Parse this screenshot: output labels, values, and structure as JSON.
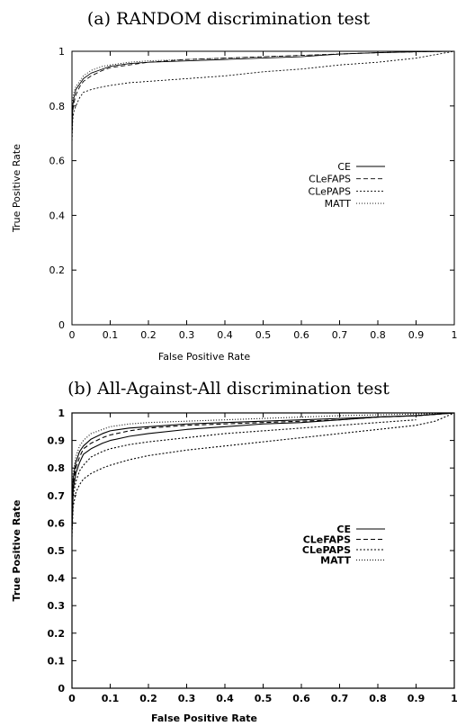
{
  "chart_data": [
    {
      "type": "line",
      "title": "(a) RANDOM discrimination test",
      "xlabel": "False Positive Rate",
      "ylabel": "True Positive Rate",
      "xlim": [
        0,
        1
      ],
      "ylim": [
        0,
        1
      ],
      "xticks": [
        "0",
        "0.1",
        "0.2",
        "0.3",
        "0.4",
        "0.5",
        "0.6",
        "0.7",
        "0.8",
        "0.9",
        "1"
      ],
      "yticks": [
        "0",
        "0.2",
        "0.4",
        "0.6",
        "0.8",
        "1"
      ],
      "grid": false,
      "legend_position": "center-right",
      "series": [
        {
          "name": "CE",
          "dash": "",
          "x": [
            0,
            0.002,
            0.005,
            0.01,
            0.02,
            0.03,
            0.05,
            0.08,
            0.1,
            0.15,
            0.2,
            0.3,
            0.4,
            0.5,
            0.6,
            0.7,
            0.8,
            0.9,
            1.0
          ],
          "y": [
            0.7,
            0.8,
            0.83,
            0.86,
            0.88,
            0.9,
            0.92,
            0.935,
            0.945,
            0.955,
            0.96,
            0.965,
            0.97,
            0.975,
            0.98,
            0.99,
            0.995,
            0.998,
            1.0
          ]
        },
        {
          "name": "CLeFAPS",
          "dash": "5,3",
          "x": [
            0,
            0.002,
            0.005,
            0.01,
            0.02,
            0.03,
            0.05,
            0.08,
            0.1,
            0.15,
            0.2,
            0.3,
            0.4,
            0.5,
            0.6,
            0.7,
            0.8,
            0.9,
            1.0
          ],
          "y": [
            0.68,
            0.78,
            0.81,
            0.84,
            0.87,
            0.89,
            0.91,
            0.93,
            0.94,
            0.95,
            0.96,
            0.97,
            0.975,
            0.98,
            0.985,
            0.99,
            0.995,
            0.998,
            1.0
          ]
        },
        {
          "name": "CLePAPS",
          "dash": "2,2",
          "x": [
            0,
            0.002,
            0.005,
            0.01,
            0.02,
            0.03,
            0.05,
            0.08,
            0.1,
            0.15,
            0.2,
            0.3,
            0.4,
            0.5,
            0.6,
            0.7,
            0.8,
            0.9,
            1.0
          ],
          "y": [
            0.66,
            0.75,
            0.78,
            0.8,
            0.83,
            0.85,
            0.86,
            0.87,
            0.875,
            0.885,
            0.89,
            0.9,
            0.91,
            0.925,
            0.935,
            0.95,
            0.96,
            0.975,
            1.0
          ]
        },
        {
          "name": "MATT",
          "dash": "1,2",
          "x": [
            0,
            0.002,
            0.005,
            0.01,
            0.02,
            0.03,
            0.05,
            0.08,
            0.1,
            0.15,
            0.2,
            0.3,
            0.4,
            0.5,
            0.6,
            0.7,
            0.8,
            0.9,
            1.0
          ],
          "y": [
            0.72,
            0.82,
            0.85,
            0.87,
            0.89,
            0.91,
            0.93,
            0.945,
            0.95,
            0.96,
            0.965,
            0.97,
            0.975,
            0.98,
            0.985,
            0.99,
            0.995,
            0.998,
            1.0
          ]
        }
      ]
    },
    {
      "type": "line",
      "title": "(b) All-Against-All discrimination test",
      "xlabel": "False Positive Rate",
      "ylabel": "True Positive Rate",
      "xlim": [
        0,
        1
      ],
      "ylim": [
        0,
        1
      ],
      "xticks": [
        "0",
        "0.1",
        "0.2",
        "0.3",
        "0.4",
        "0.5",
        "0.6",
        "0.7",
        "0.8",
        "0.9",
        "1"
      ],
      "yticks": [
        "0",
        "0.1",
        "0.2",
        "0.3",
        "0.4",
        "0.5",
        "0.6",
        "0.7",
        "0.8",
        "0.9",
        "1"
      ],
      "grid": false,
      "legend_position": "center-right",
      "series": [
        {
          "name": "CE",
          "dash": "",
          "x": [
            0,
            0.003,
            0.01,
            0.02,
            0.03,
            0.05,
            0.08,
            0.1,
            0.15,
            0.2,
            0.3,
            0.4,
            0.5,
            0.6,
            0.7,
            0.8,
            0.9,
            0.95,
            1.0
          ],
          "y": [
            0.6,
            0.76,
            0.82,
            0.86,
            0.88,
            0.905,
            0.925,
            0.935,
            0.945,
            0.95,
            0.96,
            0.965,
            0.97,
            0.975,
            0.98,
            0.985,
            0.99,
            0.995,
            1.0
          ]
        },
        {
          "name": "CE",
          "dash": "",
          "x": [
            0,
            0.003,
            0.01,
            0.02,
            0.03,
            0.05,
            0.08,
            0.1,
            0.15,
            0.2,
            0.3,
            0.4,
            0.5,
            0.6,
            0.7,
            0.8,
            0.9,
            0.95,
            1.0
          ],
          "y": [
            0.58,
            0.72,
            0.78,
            0.82,
            0.85,
            0.87,
            0.89,
            0.9,
            0.915,
            0.925,
            0.94,
            0.95,
            0.96,
            0.965,
            0.975,
            0.985,
            0.99,
            0.995,
            1.0
          ]
        },
        {
          "name": "CLeFAPS",
          "dash": "5,3",
          "x": [
            0,
            0.003,
            0.01,
            0.02,
            0.03,
            0.05,
            0.08,
            0.1,
            0.15,
            0.2,
            0.3,
            0.4,
            0.5,
            0.6,
            0.7,
            0.8,
            0.9,
            0.95,
            1.0
          ],
          "y": [
            0.59,
            0.74,
            0.8,
            0.84,
            0.87,
            0.89,
            0.91,
            0.92,
            0.935,
            0.945,
            0.955,
            0.96,
            0.965,
            0.97,
            0.975,
            0.985,
            0.99,
            0.995,
            1.0
          ]
        },
        {
          "name": "CLePAPS",
          "dash": "2,2",
          "x": [
            0,
            0.003,
            0.01,
            0.02,
            0.03,
            0.05,
            0.08,
            0.1,
            0.15,
            0.2,
            0.3,
            0.4,
            0.5,
            0.6,
            0.7,
            0.8,
            0.9,
            0.95,
            1.0
          ],
          "y": [
            0.55,
            0.66,
            0.71,
            0.74,
            0.76,
            0.78,
            0.8,
            0.81,
            0.83,
            0.845,
            0.865,
            0.88,
            0.895,
            0.91,
            0.925,
            0.94,
            0.955,
            0.97,
            1.0
          ]
        },
        {
          "name": "CLePAPS",
          "dash": "2,2",
          "x": [
            0,
            0.003,
            0.01,
            0.02,
            0.03,
            0.05,
            0.08,
            0.1,
            0.15,
            0.2,
            0.3,
            0.4,
            0.5,
            0.6,
            0.7,
            0.8,
            0.9
          ],
          "y": [
            0.57,
            0.7,
            0.75,
            0.79,
            0.81,
            0.84,
            0.86,
            0.87,
            0.885,
            0.895,
            0.91,
            0.925,
            0.935,
            0.945,
            0.955,
            0.965,
            0.975
          ]
        },
        {
          "name": "MATT",
          "dash": "1,2",
          "x": [
            0,
            0.003,
            0.01,
            0.02,
            0.03,
            0.05,
            0.08,
            0.1,
            0.15,
            0.2,
            0.3,
            0.4,
            0.5,
            0.6,
            0.7,
            0.8,
            0.9,
            0.95,
            1.0
          ],
          "y": [
            0.62,
            0.78,
            0.84,
            0.88,
            0.9,
            0.925,
            0.94,
            0.95,
            0.96,
            0.965,
            0.97,
            0.975,
            0.98,
            0.985,
            0.99,
            0.993,
            0.996,
            0.998,
            1.0
          ]
        }
      ],
      "legend_entries": [
        {
          "name": "CE",
          "dash": ""
        },
        {
          "name": "CLeFAPS",
          "dash": "5,3"
        },
        {
          "name": "CLePAPS",
          "dash": "2,2"
        },
        {
          "name": "MATT",
          "dash": "1,2"
        }
      ]
    }
  ]
}
